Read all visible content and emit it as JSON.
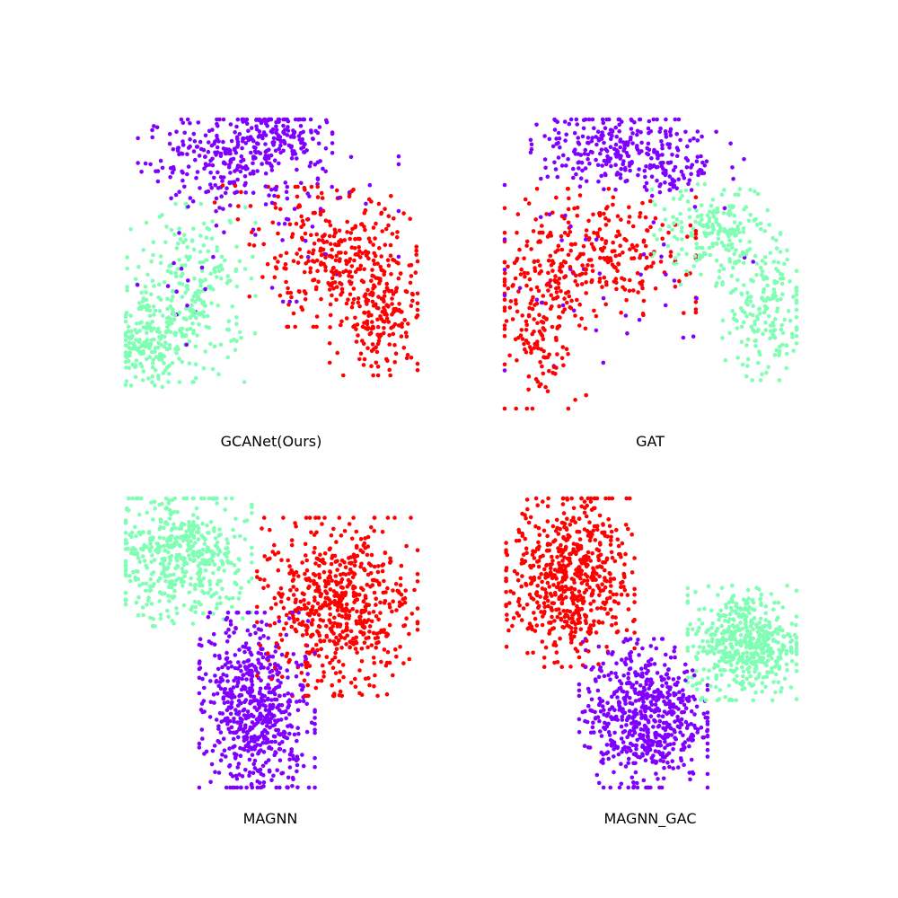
{
  "chart_data": [
    {
      "type": "scatter",
      "title": "GCANet(Ours)",
      "series": [
        {
          "color": "#8000ff",
          "clusters": [
            {
              "cx": -0.3,
              "cy": 0.72,
              "sx": 0.28,
              "sy": 0.16,
              "n": 230
            },
            {
              "cx": 0.02,
              "cy": 0.88,
              "sx": 0.18,
              "sy": 0.1,
              "n": 150
            },
            {
              "cx": 0.1,
              "cy": 0.4,
              "sx": 0.35,
              "sy": 0.3,
              "n": 45
            },
            {
              "cx": -0.6,
              "cy": -0.2,
              "sx": 0.15,
              "sy": 0.25,
              "n": 15
            }
          ]
        },
        {
          "color": "#ff0000",
          "clusters": [
            {
              "cx": 0.42,
              "cy": 0.05,
              "sx": 0.26,
              "sy": 0.22,
              "n": 280
            },
            {
              "cx": 0.75,
              "cy": -0.33,
              "sx": 0.16,
              "sy": 0.2,
              "n": 190
            },
            {
              "cx": -0.35,
              "cy": 0.45,
              "sx": 0.2,
              "sy": 0.1,
              "n": 8
            }
          ]
        },
        {
          "color": "#80ffb4",
          "clusters": [
            {
              "cx": -0.55,
              "cy": -0.2,
              "sx": 0.2,
              "sy": 0.28,
              "n": 260
            },
            {
              "cx": -0.85,
              "cy": -0.58,
              "sx": 0.13,
              "sy": 0.13,
              "n": 170
            }
          ]
        }
      ]
    },
    {
      "type": "scatter",
      "title": "GAT",
      "series": [
        {
          "color": "#8000ff",
          "clusters": [
            {
              "cx": -0.25,
              "cy": 0.82,
              "sx": 0.26,
              "sy": 0.14,
              "n": 240
            },
            {
              "cx": 0.2,
              "cy": 0.65,
              "sx": 0.2,
              "sy": 0.12,
              "n": 70
            },
            {
              "cx": -0.3,
              "cy": 0.0,
              "sx": 0.5,
              "sy": 0.35,
              "n": 45
            }
          ]
        },
        {
          "color": "#ff0000",
          "clusters": [
            {
              "cx": -0.35,
              "cy": 0.08,
              "sx": 0.3,
              "sy": 0.2,
              "n": 250
            },
            {
              "cx": -0.75,
              "cy": -0.4,
              "sx": 0.14,
              "sy": 0.28,
              "n": 180
            }
          ]
        },
        {
          "color": "#80ffb4",
          "clusters": [
            {
              "cx": 0.45,
              "cy": 0.2,
              "sx": 0.2,
              "sy": 0.16,
              "n": 200
            },
            {
              "cx": 0.8,
              "cy": -0.32,
              "sx": 0.14,
              "sy": 0.22,
              "n": 180
            }
          ]
        }
      ]
    },
    {
      "type": "scatter",
      "title": "MAGNN",
      "series": [
        {
          "color": "#80ffb4",
          "clusters": [
            {
              "cx": -0.62,
              "cy": 0.6,
              "sx": 0.22,
              "sy": 0.22,
              "n": 480
            }
          ]
        },
        {
          "color": "#ff0000",
          "clusters": [
            {
              "cx": 0.45,
              "cy": 0.25,
              "sx": 0.25,
              "sy": 0.28,
              "n": 620
            }
          ]
        },
        {
          "color": "#8000ff",
          "clusters": [
            {
              "cx": -0.1,
              "cy": -0.45,
              "sx": 0.18,
              "sy": 0.3,
              "n": 620
            }
          ]
        }
      ]
    },
    {
      "type": "scatter",
      "title": "MAGNN_GAC",
      "series": [
        {
          "color": "#ff0000",
          "clusters": [
            {
              "cx": -0.55,
              "cy": 0.45,
              "sx": 0.2,
              "sy": 0.28,
              "n": 620
            }
          ]
        },
        {
          "color": "#80ffb4",
          "clusters": [
            {
              "cx": 0.65,
              "cy": 0.0,
              "sx": 0.18,
              "sy": 0.18,
              "n": 500
            }
          ]
        },
        {
          "color": "#8000ff",
          "clusters": [
            {
              "cx": -0.05,
              "cy": -0.5,
              "sx": 0.2,
              "sy": 0.24,
              "n": 620
            }
          ]
        }
      ]
    }
  ]
}
